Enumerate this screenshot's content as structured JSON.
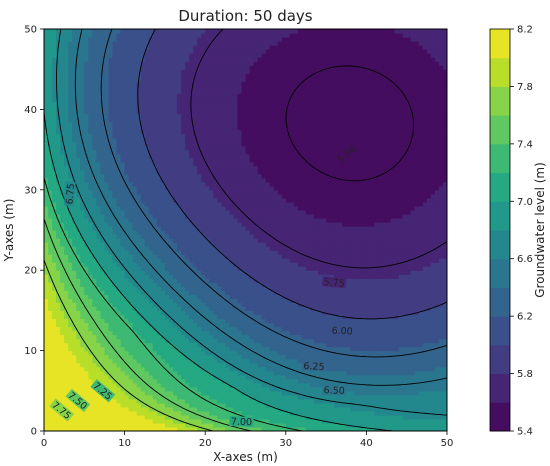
{
  "chart_data": {
    "type": "heatmap",
    "subtype": "filled-contour",
    "title": "Duration: 50 days",
    "xlabel": "X-axes (m)",
    "ylabel": "Y-axes (m)",
    "xlim": [
      0,
      50
    ],
    "ylim": [
      0,
      50
    ],
    "xticks": [
      "0",
      "10",
      "20",
      "30",
      "40",
      "50"
    ],
    "yticks": [
      "0",
      "10",
      "20",
      "30",
      "40",
      "50"
    ],
    "grid": false,
    "colorbar": {
      "label": "Groundwater level (m)",
      "range": [
        5.4,
        8.2
      ],
      "levels": [
        5.4,
        5.6,
        5.8,
        6.0,
        6.2,
        6.4,
        6.6,
        6.8,
        7.0,
        7.2,
        7.4,
        7.6,
        7.8,
        8.0,
        8.2
      ],
      "ticks": [
        "5.4",
        "5.8",
        "6.2",
        "6.6",
        "7.0",
        "7.4",
        "7.8",
        "8.2"
      ],
      "colormap": "viridis"
    },
    "contour_lines": [
      {
        "level": 5.5,
        "label": "5.50",
        "label_at": [
          37.5,
          34.5
        ],
        "label_angle": 40
      },
      {
        "level": 5.75,
        "label": "5.75",
        "label_at": [
          36,
          18.5
        ],
        "label_angle": -5
      },
      {
        "level": 6.0,
        "label": "6.00",
        "label_at": [
          37,
          12.5
        ],
        "label_angle": -3
      },
      {
        "level": 6.25,
        "label": "6.25",
        "label_at": [
          33.5,
          8.1
        ],
        "label_angle": -3
      },
      {
        "level": 6.5,
        "label": "6.50",
        "label_at": [
          36,
          5.1
        ],
        "label_angle": -2
      },
      {
        "level": 6.75,
        "label": "6.75",
        "label_at": [
          3.2,
          29.5
        ],
        "label_angle": 85
      },
      {
        "level": 7.0,
        "label": "7.00",
        "label_at": [
          24.5,
          1.2
        ],
        "label_angle": -2
      },
      {
        "level": 7.25,
        "label": "7.25",
        "label_at": [
          7.3,
          5.0
        ],
        "label_angle": -40
      },
      {
        "level": 7.5,
        "label": "7.50",
        "label_at": [
          4.2,
          3.8
        ],
        "label_angle": -40
      },
      {
        "level": 7.75,
        "label": "7.75",
        "label_at": [
          2.2,
          2.6
        ],
        "label_angle": -40
      }
    ],
    "field_model": {
      "minimum_at": [
        37.5,
        38
      ],
      "minimum_value": 5.45,
      "maximum_at": [
        0,
        0
      ],
      "maximum_value": 8.0
    }
  }
}
